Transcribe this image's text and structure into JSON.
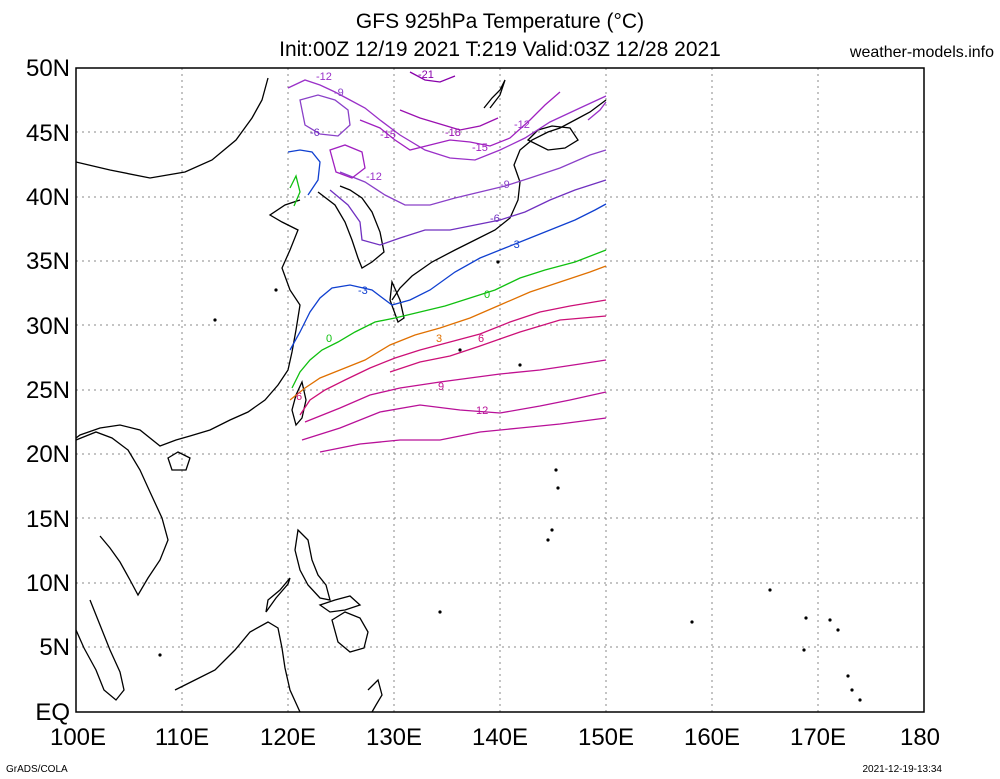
{
  "header": {
    "title_line1": "GFS 925hPa Temperature (°C)",
    "title_line2": "Init:00Z 12/19 2021 T:219 Valid:03Z 12/28 2021",
    "brand": "weather-models.info"
  },
  "footer": {
    "left": "GrADS/COLA",
    "right": "2021-12-19-13:34"
  },
  "axes": {
    "y_labels": [
      "50N",
      "45N",
      "40N",
      "35N",
      "30N",
      "25N",
      "20N",
      "15N",
      "10N",
      "5N",
      "EQ"
    ],
    "x_labels": [
      "100E",
      "110E",
      "120E",
      "130E",
      "140E",
      "150E",
      "160E",
      "170E",
      "180"
    ]
  },
  "contour_labels": [
    "-21",
    "-18",
    "-15",
    "-12",
    "-9",
    "-6",
    "-3",
    "0",
    "3",
    "6",
    "9",
    "12"
  ],
  "colors": {
    "c_m21": "#8800aa",
    "c_m18": "#9a10b0",
    "c_m15": "#a020c0",
    "c_m12": "#9a30c8",
    "c_m9": "#8a40c8",
    "c_m6": "#7030c0",
    "c_m3": "#1040d0",
    "c_0": "#10c010",
    "c_3": "#e07000",
    "c_6": "#cc1077",
    "c_9": "#c01090",
    "c_12": "#b81098"
  }
}
